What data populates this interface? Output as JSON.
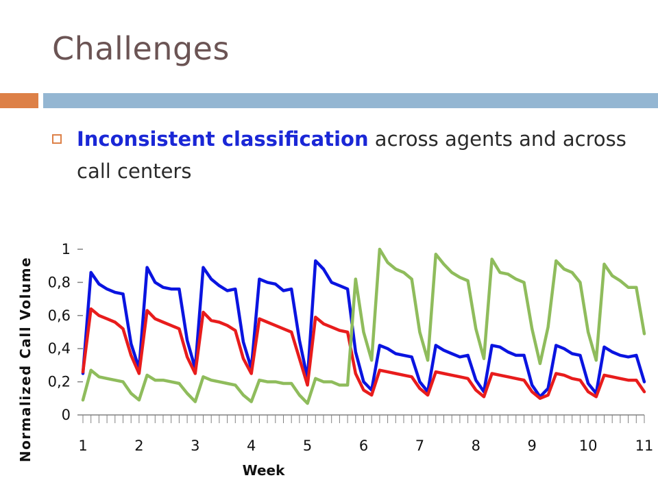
{
  "slide": {
    "title": "Challenges",
    "bullet": {
      "emphasis": "Inconsistent classification",
      "text": " across agents and across call centers"
    }
  },
  "chart_data": {
    "type": "line",
    "xlabel": "Week",
    "ylabel": "Normalized Call Volume",
    "xlim": [
      1,
      11
    ],
    "ylim": [
      0,
      1
    ],
    "x_ticks": [
      "1",
      "2",
      "3",
      "4",
      "5",
      "6",
      "7",
      "8",
      "9",
      "10",
      "11"
    ],
    "y_ticks": [
      "0",
      "0,2",
      "0,4",
      "0,6",
      "0,8",
      "1"
    ],
    "grid": false,
    "legend": "none",
    "series": [
      {
        "color": "#0a14e0",
        "values": [
          0.25,
          0.86,
          0.79,
          0.76,
          0.74,
          0.73,
          0.43,
          0.28,
          0.89,
          0.8,
          0.77,
          0.76,
          0.76,
          0.45,
          0.28,
          0.89,
          0.82,
          0.78,
          0.75,
          0.76,
          0.44,
          0.28,
          0.82,
          0.8,
          0.79,
          0.75,
          0.76,
          0.45,
          0.22,
          0.93,
          0.88,
          0.8,
          0.78,
          0.76,
          0.38,
          0.2,
          0.15,
          0.42,
          0.4,
          0.37,
          0.36,
          0.35,
          0.2,
          0.14,
          0.42,
          0.39,
          0.37,
          0.35,
          0.36,
          0.21,
          0.14,
          0.42,
          0.41,
          0.38,
          0.36,
          0.36,
          0.18,
          0.11,
          0.16,
          0.42,
          0.4,
          0.37,
          0.36,
          0.19,
          0.13,
          0.41,
          0.38,
          0.36,
          0.35,
          0.36,
          0.2
        ]
      },
      {
        "color": "#e81c1c",
        "values": [
          0.26,
          0.64,
          0.6,
          0.58,
          0.56,
          0.52,
          0.36,
          0.25,
          0.63,
          0.58,
          0.56,
          0.54,
          0.52,
          0.35,
          0.25,
          0.62,
          0.57,
          0.56,
          0.54,
          0.51,
          0.34,
          0.25,
          0.58,
          0.56,
          0.54,
          0.52,
          0.5,
          0.34,
          0.18,
          0.59,
          0.55,
          0.53,
          0.51,
          0.5,
          0.25,
          0.15,
          0.12,
          0.27,
          0.26,
          0.25,
          0.24,
          0.23,
          0.16,
          0.12,
          0.26,
          0.25,
          0.24,
          0.23,
          0.22,
          0.15,
          0.11,
          0.25,
          0.24,
          0.23,
          0.22,
          0.21,
          0.14,
          0.1,
          0.12,
          0.25,
          0.24,
          0.22,
          0.21,
          0.14,
          0.11,
          0.24,
          0.23,
          0.22,
          0.21,
          0.21,
          0.14
        ]
      },
      {
        "color": "#8fbc5c",
        "values": [
          0.09,
          0.27,
          0.23,
          0.22,
          0.21,
          0.2,
          0.13,
          0.09,
          0.24,
          0.21,
          0.21,
          0.2,
          0.19,
          0.13,
          0.08,
          0.23,
          0.21,
          0.2,
          0.19,
          0.18,
          0.12,
          0.08,
          0.21,
          0.2,
          0.2,
          0.19,
          0.19,
          0.12,
          0.07,
          0.22,
          0.2,
          0.2,
          0.18,
          0.18,
          0.82,
          0.5,
          0.33,
          1.0,
          0.92,
          0.88,
          0.86,
          0.82,
          0.5,
          0.33,
          0.97,
          0.91,
          0.86,
          0.83,
          0.81,
          0.52,
          0.34,
          0.94,
          0.86,
          0.85,
          0.82,
          0.8,
          0.52,
          0.31,
          0.53,
          0.93,
          0.88,
          0.86,
          0.8,
          0.5,
          0.33,
          0.91,
          0.84,
          0.81,
          0.77,
          0.77,
          0.49
        ]
      }
    ]
  }
}
